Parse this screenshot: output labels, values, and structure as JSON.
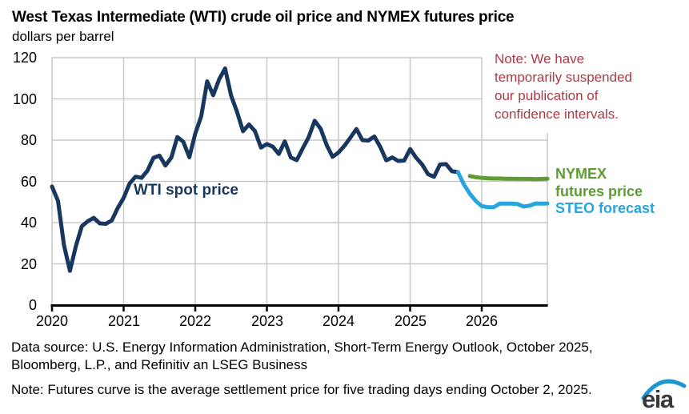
{
  "title": "West Texas Intermediate (WTI) crude oil price and NYMEX futures price",
  "subtitle": "dollars per barrel",
  "series_labels": {
    "wti": "WTI spot price",
    "nymex": "NYMEX futures price",
    "steo": "STEO forecast"
  },
  "suspension_note_lines": [
    "Note: We have",
    "temporarily suspended",
    "our publication of",
    "confidence intervals."
  ],
  "footer": {
    "source_line1": "Data source: U.S. Energy Information Administration, Short-Term Energy Outlook, October 2025,",
    "source_line2": "Bloomberg, L.P., and Refinitiv an LSEG Business",
    "futures_note": "Note: Futures curve is the average settlement price for five trading days ending October 2, 2025.",
    "logo_text": "eia"
  },
  "colors": {
    "wti_navy": "#17375E",
    "steo_blue": "#29A5DE",
    "nymex_green": "#5E9C33",
    "note_red": "#AC3A48",
    "grid": "#C9C9C9",
    "axis": "#000000",
    "logo_dark": "#3A3A3A",
    "logo_blue": "#1E96D2"
  },
  "chart_data": {
    "type": "line",
    "title": "West Texas Intermediate (WTI) crude oil price and NYMEX futures price",
    "ylabel": "dollars per barrel",
    "xlabel": "",
    "grid": true,
    "legend_position": "right",
    "ylim": [
      0,
      120
    ],
    "y_ticks": [
      0,
      20,
      40,
      60,
      80,
      100,
      120
    ],
    "x_ticks": [
      2020,
      2021,
      2022,
      2023,
      2024,
      2025,
      2026
    ],
    "x_range": [
      2020,
      2026.9167
    ],
    "series": [
      {
        "name": "WTI spot price",
        "color": "#17375E",
        "width": 5,
        "start_year": 2020,
        "start_month": 1,
        "frequency": "monthly",
        "values": [
          57.5,
          50.5,
          29.2,
          16.6,
          28.6,
          38.3,
          40.7,
          42.3,
          39.6,
          39.4,
          41.0,
          47.0,
          52.0,
          59.0,
          62.3,
          61.7,
          65.2,
          71.4,
          72.5,
          67.7,
          71.6,
          81.5,
          79.2,
          71.7,
          83.2,
          91.6,
          108.5,
          101.8,
          109.5,
          114.8,
          101.6,
          93.7,
          84.3,
          87.6,
          84.4,
          76.4,
          78.1,
          76.8,
          73.3,
          79.4,
          71.6,
          70.3,
          76.0,
          81.4,
          89.4,
          85.5,
          77.7,
          71.9,
          74.0,
          77.3,
          81.3,
          85.4,
          80.0,
          79.8,
          81.8,
          76.7,
          70.2,
          71.6,
          69.9,
          70.1,
          75.7,
          71.5,
          68.2,
          63.5,
          62.2,
          68.2,
          68.4,
          64.9,
          64.5
        ]
      },
      {
        "name": "STEO forecast",
        "color": "#29A5DE",
        "width": 5,
        "start_year": 2025,
        "start_month": 9,
        "frequency": "monthly",
        "values": [
          64.5,
          58.5,
          54.0,
          50.5,
          48.0,
          47.5,
          47.5,
          49.2,
          49.2,
          49.2,
          49.0,
          47.8,
          48.2,
          49.3,
          49.2,
          49.3
        ]
      },
      {
        "name": "NYMEX futures price",
        "color": "#5E9C33",
        "width": 5,
        "start_year": 2025,
        "start_month": 11,
        "frequency": "monthly",
        "values": [
          62.6,
          62.0,
          61.7,
          61.5,
          61.4,
          61.4,
          61.3,
          61.3,
          61.2,
          61.2,
          61.2,
          61.1,
          61.2,
          61.3
        ]
      }
    ]
  }
}
